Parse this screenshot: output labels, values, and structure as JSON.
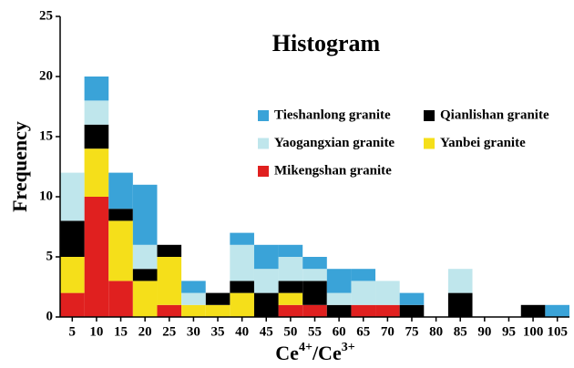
{
  "chart_data": {
    "type": "histogram",
    "stacked": true,
    "title": "Histogram",
    "x_label": [
      "Ce",
      "4+",
      "/Ce",
      "3+"
    ],
    "y_label": "Frequency",
    "bins": [
      2.5,
      7.5,
      12.5,
      17.5,
      22.5,
      27.5,
      32.5,
      37.5,
      42.5,
      47.5,
      52.5,
      57.5,
      62.5,
      67.5,
      72.5,
      77.5,
      82.5,
      87.5,
      92.5,
      97.5,
      102.5,
      107.5
    ],
    "series": [
      {
        "name": "Mikengshan granite",
        "color": "#e0201f",
        "values": [
          2,
          10,
          3,
          0,
          1,
          0,
          0,
          0,
          0,
          1,
          1,
          0,
          1,
          1,
          0,
          0,
          0,
          0,
          0,
          0,
          0
        ]
      },
      {
        "name": "Yanbei granite",
        "color": "#f5df1a",
        "values": [
          3,
          4,
          5,
          3,
          4,
          1,
          1,
          2,
          0,
          1,
          0,
          0,
          0,
          0,
          0,
          0,
          0,
          0,
          0,
          0,
          0
        ]
      },
      {
        "name": "Qianlishan granite",
        "color": "#000000",
        "values": [
          3,
          2,
          1,
          1,
          1,
          0,
          1,
          1,
          2,
          1,
          2,
          1,
          0,
          0,
          1,
          0,
          2,
          0,
          0,
          1,
          0
        ]
      },
      {
        "name": "Yaogangxian granite",
        "color": "#bfe6ec",
        "values": [
          4,
          2,
          0,
          2,
          0,
          1,
          0,
          3,
          2,
          2,
          1,
          1,
          2,
          2,
          0,
          0,
          2,
          0,
          0,
          0,
          0
        ]
      },
      {
        "name": "Tieshanlong granite",
        "color": "#3aa3d8",
        "values": [
          0,
          2,
          3,
          5,
          0,
          1,
          0,
          1,
          2,
          1,
          1,
          2,
          1,
          0,
          1,
          0,
          0,
          0,
          0,
          0,
          1
        ]
      }
    ],
    "xlim": [
      2.5,
      107.5
    ],
    "ylim": [
      0,
      25
    ],
    "xticks": [
      5,
      10,
      15,
      20,
      25,
      30,
      35,
      40,
      45,
      50,
      55,
      60,
      65,
      70,
      75,
      80,
      85,
      90,
      95,
      100,
      105
    ],
    "yticks": [
      0,
      5,
      10,
      15,
      20,
      25
    ]
  }
}
